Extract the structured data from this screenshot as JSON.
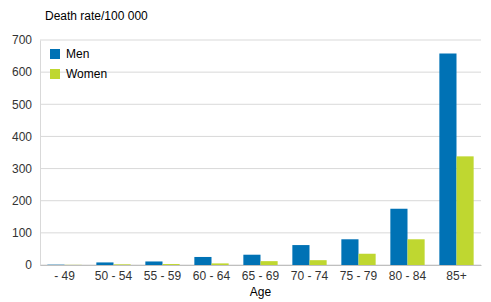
{
  "chart_data": {
    "type": "bar",
    "y_label": "Death rate/100 000",
    "x_label": "Age",
    "categories": [
      "- 49",
      "50 - 54",
      "55 - 59",
      "60 - 64",
      "65 - 69",
      "70 - 74",
      "75 - 79",
      "80 - 84",
      "85+"
    ],
    "series": [
      {
        "name": "Men",
        "color": "#0072b5",
        "values": [
          1,
          8,
          11,
          25,
          32,
          62,
          80,
          175,
          658
        ]
      },
      {
        "name": "Women",
        "color": "#bfd730",
        "values": [
          0.5,
          2,
          3,
          5,
          12,
          15,
          35,
          80,
          338
        ]
      }
    ],
    "ylim": [
      0,
      700
    ],
    "yticks": [
      0,
      100,
      200,
      300,
      400,
      500,
      600,
      700
    ],
    "grid": true,
    "legend": "top-left"
  }
}
